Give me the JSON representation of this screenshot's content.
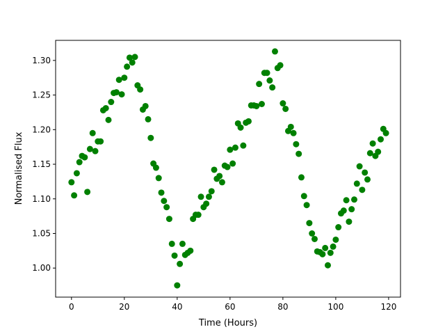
{
  "chart_data": {
    "type": "scatter",
    "title": "",
    "xlabel": "Time (Hours)",
    "ylabel": "Normalised Flux",
    "xlim": [
      -6,
      124.5
    ],
    "ylim": [
      0.958,
      1.329
    ],
    "xticks": [
      0,
      20,
      40,
      60,
      80,
      100,
      120
    ],
    "yticks": [
      1.0,
      1.05,
      1.1,
      1.15,
      1.2,
      1.25,
      1.3
    ],
    "grid": false,
    "marker_color": "#008000",
    "series": [
      {
        "x": [
          0,
          1,
          2,
          3,
          4,
          5,
          6,
          7,
          8,
          9,
          10,
          11,
          12,
          13,
          14,
          15,
          16,
          17,
          18,
          19,
          20,
          21,
          22,
          23,
          24,
          25,
          26,
          27,
          28,
          29,
          30,
          31,
          32,
          33,
          34,
          35,
          36,
          37,
          38,
          39,
          40,
          41,
          42,
          43,
          44,
          45,
          46,
          47,
          48,
          49,
          50,
          51,
          52,
          53,
          54,
          55,
          56,
          57,
          58,
          59,
          60,
          61,
          62,
          63,
          64,
          65,
          66,
          67,
          68,
          69,
          70,
          71,
          72,
          73,
          74,
          75,
          76,
          77,
          78,
          79,
          80,
          81,
          82,
          83,
          84,
          85,
          86,
          87,
          88,
          89,
          90,
          91,
          92,
          93,
          94,
          95,
          96,
          97,
          98,
          99,
          100,
          101,
          102,
          103,
          104,
          105,
          106,
          107,
          108,
          109,
          110,
          111,
          112,
          113,
          114,
          115,
          116,
          117,
          118,
          119
        ],
        "y": [
          1.124,
          1.105,
          1.137,
          1.153,
          1.162,
          1.16,
          1.11,
          1.172,
          1.195,
          1.169,
          1.183,
          1.183,
          1.228,
          1.231,
          1.214,
          1.24,
          1.253,
          1.254,
          1.272,
          1.251,
          1.275,
          1.291,
          1.304,
          1.297,
          1.305,
          1.264,
          1.258,
          1.229,
          1.234,
          1.215,
          1.188,
          1.151,
          1.145,
          1.13,
          1.109,
          1.097,
          1.088,
          1.071,
          1.035,
          1.018,
          0.975,
          1.006,
          1.035,
          1.019,
          1.022,
          1.025,
          1.071,
          1.077,
          1.077,
          1.103,
          1.088,
          1.093,
          1.103,
          1.111,
          1.142,
          1.129,
          1.133,
          1.124,
          1.148,
          1.146,
          1.171,
          1.151,
          1.174,
          1.209,
          1.203,
          1.177,
          1.21,
          1.212,
          1.235,
          1.235,
          1.234,
          1.266,
          1.237,
          1.282,
          1.282,
          1.271,
          1.261,
          1.313,
          1.289,
          1.293,
          1.238,
          1.23,
          1.198,
          1.204,
          1.195,
          1.179,
          1.165,
          1.131,
          1.104,
          1.091,
          1.065,
          1.05,
          1.042,
          1.024,
          1.023,
          1.02,
          1.029,
          1.004,
          1.022,
          1.031,
          1.041,
          1.059,
          1.079,
          1.083,
          1.098,
          1.067,
          1.085,
          1.099,
          1.122,
          1.147,
          1.113,
          1.138,
          1.128,
          1.166,
          1.18,
          1.162,
          1.168,
          1.186,
          1.201,
          1.195
        ]
      }
    ]
  }
}
